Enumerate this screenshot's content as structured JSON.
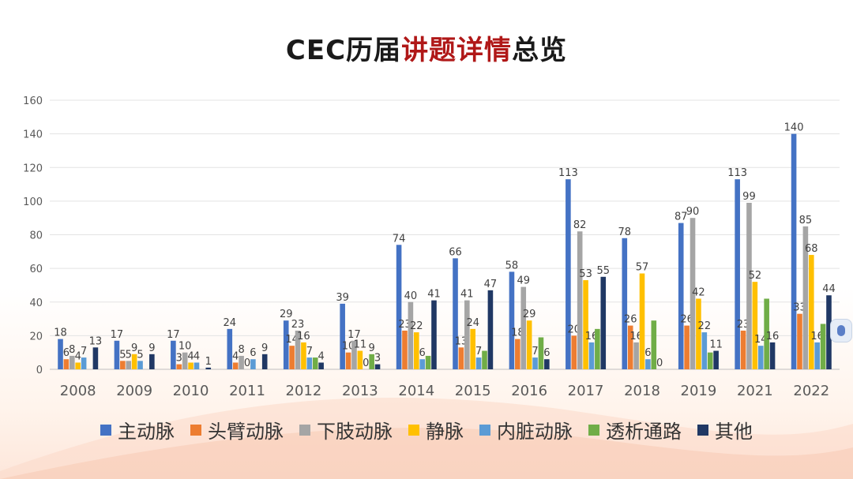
{
  "title": {
    "prefix": "CEC历届",
    "accent": "讲题详情",
    "suffix": "总览",
    "accent_color": "#b01818"
  },
  "chart_data": {
    "type": "bar",
    "categories": [
      "2008",
      "2009",
      "2010",
      "2011",
      "2012",
      "2013",
      "2014",
      "2015",
      "2016",
      "2017",
      "2018",
      "2019",
      "2021",
      "2022"
    ],
    "ylim": [
      0,
      160
    ],
    "yticks": [
      0,
      20,
      40,
      60,
      80,
      100,
      120,
      140,
      160
    ],
    "grid": true,
    "legend_position": "bottom",
    "series": [
      {
        "name": "主动脉",
        "color": "#4472c4",
        "values": [
          18,
          17,
          17,
          24,
          29,
          39,
          74,
          66,
          58,
          113,
          78,
          87,
          113,
          140
        ]
      },
      {
        "name": "头臂动脉",
        "color": "#ed7d31",
        "values": [
          6,
          5,
          3,
          4,
          14,
          10,
          23,
          13,
          18,
          20,
          26,
          26,
          23,
          33
        ]
      },
      {
        "name": "下肢动脉",
        "color": "#a5a5a5",
        "values": [
          8,
          5,
          10,
          8,
          23,
          17,
          40,
          41,
          49,
          82,
          16,
          90,
          99,
          85
        ]
      },
      {
        "name": "静脉",
        "color": "#ffc000",
        "values": [
          4,
          9,
          4,
          0,
          16,
          11,
          22,
          24,
          29,
          53,
          57,
          42,
          52,
          68
        ]
      },
      {
        "name": "内脏动脉",
        "color": "#5b9bd5",
        "values": [
          7,
          5,
          4,
          6,
          7,
          0,
          6,
          7,
          7,
          16,
          6,
          22,
          14,
          16
        ]
      },
      {
        "name": "透析通路",
        "color": "#70ad47",
        "values": [
          null,
          null,
          null,
          null,
          7,
          9,
          8,
          11,
          19,
          24,
          29,
          10,
          42,
          27
        ]
      },
      {
        "name": "其他",
        "color": "#203864",
        "values": [
          13,
          9,
          1,
          9,
          4,
          3,
          41,
          47,
          6,
          55,
          0,
          11,
          16,
          44
        ]
      }
    ],
    "data_labels": [
      [
        "18",
        "6",
        "8",
        "4",
        "7",
        null,
        "13"
      ],
      [
        "17",
        "5",
        "5",
        "9",
        "5",
        null,
        "9"
      ],
      [
        "17",
        "3",
        "10",
        "4",
        "4",
        null,
        "1"
      ],
      [
        "24",
        "4",
        "8",
        "0",
        "6",
        null,
        "9"
      ],
      [
        "29",
        "14",
        "23",
        "16",
        "7",
        null,
        "4"
      ],
      [
        "39",
        "10",
        "17",
        "11",
        "0",
        "9",
        "3"
      ],
      [
        "74",
        "23",
        "40",
        "22",
        "6",
        null,
        "41"
      ],
      [
        "66",
        "13",
        "41",
        "24",
        "7",
        null,
        "47"
      ],
      [
        "58",
        "18",
        "49",
        "29",
        "7",
        null,
        "6"
      ],
      [
        "113",
        "20",
        "82",
        "53",
        "16",
        null,
        "55"
      ],
      [
        "78",
        "26",
        "16",
        "57",
        "6",
        null,
        "0"
      ],
      [
        "87",
        "26",
        "90",
        "42",
        "22",
        null,
        "11"
      ],
      [
        "113",
        "23",
        "99",
        "52",
        "14",
        null,
        "16"
      ],
      [
        "140",
        "33",
        "85",
        "68",
        "16",
        null,
        "44"
      ]
    ]
  }
}
